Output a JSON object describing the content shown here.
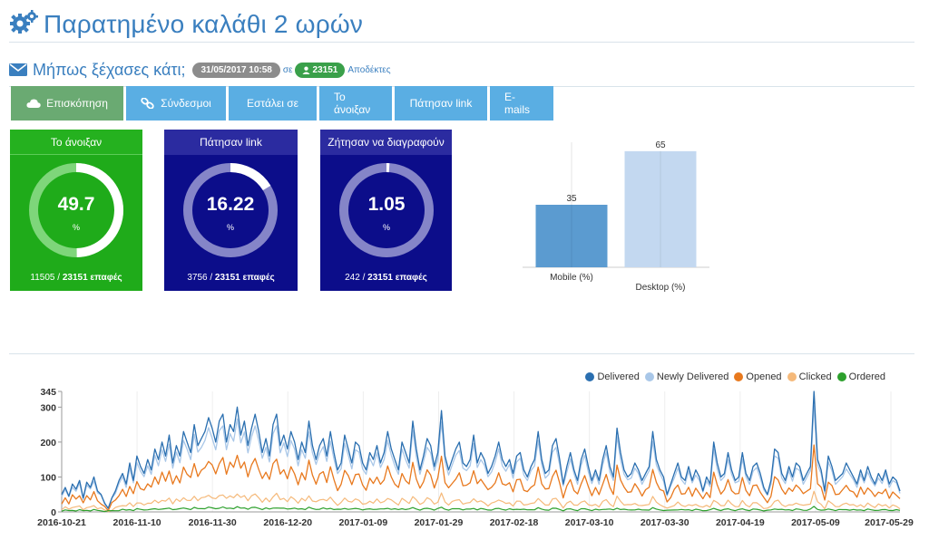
{
  "header": {
    "title": "Παρατημένο καλάθι 2 ωρών",
    "icon": "gears-icon"
  },
  "campaign": {
    "name": "Μήπως ξέχασες κάτι;",
    "date": "31/05/2017 10:58",
    "sigma": "σε",
    "count": "23151",
    "recipients_label": "Αποδέκτες"
  },
  "tabs": [
    {
      "label": "Επισκόπηση",
      "icon": "cloud-icon",
      "active": true
    },
    {
      "label": "Σύνδεσμοι",
      "icon": "link-icon"
    },
    {
      "label": "Εστάλει σε"
    },
    {
      "label": "Το άνοιξαν"
    },
    {
      "label": "Πάτησαν link"
    },
    {
      "label": "E-mails"
    }
  ],
  "stats": [
    {
      "title": "Το άνοιξαν",
      "value": "49.7",
      "unit": "%",
      "fraction": 0.497,
      "count": "11505",
      "total": "23151 επαφές",
      "color": "#1fab1a"
    },
    {
      "title": "Πάτησαν link",
      "value": "16.22",
      "unit": "%",
      "fraction": 0.1622,
      "count": "3756",
      "total": "23151 επαφές",
      "color": "#0c0d8a"
    },
    {
      "title": "Ζήτησαν να διαγραφούν",
      "value": "1.05",
      "unit": "%",
      "fraction": 0.0105,
      "count": "242",
      "total": "23151 επαφές",
      "color": "#0c0d8a"
    }
  ],
  "separator": "/",
  "chart_data": [
    {
      "type": "bar",
      "categories": [
        "Mobile (%)",
        "Desktop (%)"
      ],
      "values": [
        35,
        65
      ],
      "colors": [
        "#5b9bd0",
        "#c3d8f0"
      ],
      "ylim": [
        0,
        70
      ],
      "data_labels": [
        "35",
        "65"
      ]
    },
    {
      "type": "line",
      "ylim": [
        0,
        345
      ],
      "yticks": [
        "0",
        "100",
        "200",
        "300",
        "345"
      ],
      "x_tick_labels": [
        "2016-10-21",
        "2016-11-10",
        "2016-11-30",
        "2016-12-20",
        "2017-01-09",
        "2017-01-29",
        "2017-02-18",
        "2017-03-10",
        "2017-03-30",
        "2017-04-19",
        "2017-05-09",
        "2017-05-29"
      ],
      "legend_position": "top-right",
      "grid": true,
      "series": [
        {
          "name": "Delivered",
          "color": "#2a6fb0"
        },
        {
          "name": "Newly Delivered",
          "color": "#a9c7e8"
        },
        {
          "name": "Opened",
          "color": "#e8791e"
        },
        {
          "name": "Clicked",
          "color": "#f5b97a"
        },
        {
          "name": "Ordered",
          "color": "#2ca02c"
        }
      ],
      "start_date": "2016-10-21",
      "delivered_values": [
        50,
        70,
        45,
        80,
        65,
        90,
        40,
        85,
        70,
        100,
        60,
        50,
        25,
        10,
        40,
        60,
        90,
        110,
        80,
        140,
        90,
        160,
        130,
        110,
        150,
        120,
        180,
        150,
        200,
        160,
        220,
        140,
        190,
        160,
        230,
        200,
        170,
        250,
        190,
        210,
        230,
        270,
        240,
        200,
        260,
        280,
        200,
        250,
        230,
        300,
        220,
        260,
        190,
        240,
        280,
        230,
        170,
        210,
        160,
        250,
        280,
        190,
        220,
        180,
        230,
        200,
        150,
        200,
        170,
        260,
        190,
        150,
        190,
        210,
        160,
        230,
        170,
        120,
        140,
        220,
        180,
        140,
        200,
        190,
        140,
        120,
        170,
        150,
        190,
        140,
        170,
        230,
        180,
        150,
        120,
        200,
        170,
        140,
        260,
        180,
        120,
        160,
        210,
        190,
        130,
        170,
        290,
        160,
        120,
        150,
        180,
        200,
        140,
        130,
        150,
        220,
        140,
        170,
        150,
        110,
        130,
        160,
        200,
        150,
        130,
        150,
        110,
        160,
        170,
        120,
        100,
        130,
        150,
        230,
        150,
        110,
        120,
        190,
        210,
        150,
        80,
        130,
        170,
        120,
        90,
        150,
        180,
        130,
        90,
        120,
        90,
        150,
        190,
        130,
        100,
        240,
        170,
        120,
        100,
        110,
        140,
        120,
        90,
        110,
        130,
        230,
        150,
        120,
        100,
        50,
        80,
        110,
        140,
        100,
        90,
        130,
        90,
        120,
        100,
        60,
        100,
        80,
        200,
        140,
        100,
        110,
        170,
        120,
        90,
        100,
        170,
        110,
        90,
        130,
        140,
        110,
        70,
        50,
        90,
        180,
        170,
        110,
        90,
        130,
        100,
        140,
        130,
        90,
        110,
        130,
        345,
        150,
        120,
        60,
        160,
        130,
        90,
        100,
        110,
        140,
        120,
        100,
        80,
        120,
        90,
        130,
        100,
        80,
        110,
        90,
        120,
        80,
        100,
        90,
        60
      ],
      "opened_ratio": 0.55,
      "clicked_ratio": 0.18,
      "ordered_ratio": 0.04
    }
  ]
}
